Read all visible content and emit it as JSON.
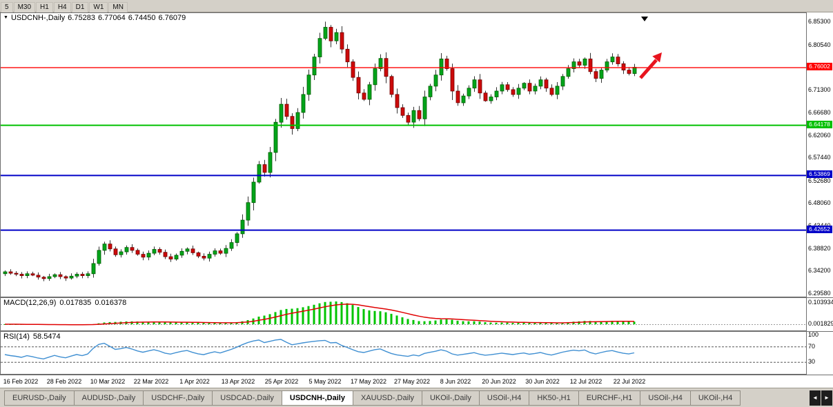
{
  "window": {
    "timeframes": [
      "5",
      "M30",
      "H1",
      "H4",
      "D1",
      "W1",
      "MN"
    ]
  },
  "chart": {
    "symbol_period": "USDCNH-,Daily",
    "open": "6.75283",
    "high": "6.77064",
    "low": "6.74450",
    "close": "6.76079",
    "y_axis": {
      "top": 6.872,
      "bottom": 6.29,
      "labels": [
        {
          "text": "6.85300",
          "price": 6.853
        },
        {
          "text": "6.80540",
          "price": 6.8054
        },
        {
          "text": "6.71300",
          "price": 6.713
        },
        {
          "text": "6.66680",
          "price": 6.6668
        },
        {
          "text": "6.62060",
          "price": 6.6206
        },
        {
          "text": "6.57440",
          "price": 6.5744
        },
        {
          "text": "6.52680",
          "price": 6.5268
        },
        {
          "text": "6.48060",
          "price": 6.4806
        },
        {
          "text": "6.43440",
          "price": 6.4344
        },
        {
          "text": "6.38820",
          "price": 6.3882
        },
        {
          "text": "6.34200",
          "price": 6.342
        },
        {
          "text": "6.29580",
          "price": 6.2958
        }
      ]
    },
    "hlines": [
      {
        "price": 6.76002,
        "label": "6.76002",
        "color": "#ff0000",
        "width": 1.4
      },
      {
        "price": 6.64178,
        "label": "6.64178",
        "color": "#00c000",
        "width": 2
      },
      {
        "price": 6.53869,
        "label": "6.53869",
        "color": "#0000c8",
        "width": 2
      },
      {
        "price": 6.42652,
        "label": "6.42652",
        "color": "#0000c8",
        "width": 2
      }
    ]
  },
  "chart_data": {
    "type": "candlestick",
    "symbol": "USDCNH-",
    "timeframe": "Daily",
    "closes": [
      6.341,
      6.338,
      6.336,
      6.333,
      6.337,
      6.334,
      6.33,
      6.327,
      6.331,
      6.335,
      6.331,
      6.328,
      6.332,
      6.336,
      6.333,
      6.337,
      6.358,
      6.385,
      6.398,
      6.388,
      6.376,
      6.382,
      6.391,
      6.385,
      6.377,
      6.371,
      6.379,
      6.387,
      6.381,
      6.372,
      6.367,
      6.375,
      6.383,
      6.388,
      6.38,
      6.373,
      6.369,
      6.377,
      6.384,
      6.379,
      6.389,
      6.401,
      6.419,
      6.447,
      6.483,
      6.525,
      6.561,
      6.545,
      6.586,
      6.648,
      6.685,
      6.66,
      6.635,
      6.668,
      6.705,
      6.745,
      6.782,
      6.82,
      6.843,
      6.815,
      6.832,
      6.798,
      6.772,
      6.74,
      6.708,
      6.695,
      6.725,
      6.758,
      6.779,
      6.742,
      6.705,
      6.678,
      6.662,
      6.648,
      6.672,
      6.655,
      6.7,
      6.722,
      6.745,
      6.778,
      6.758,
      6.712,
      6.688,
      6.702,
      6.718,
      6.735,
      6.708,
      6.692,
      6.7,
      6.712,
      6.725,
      6.715,
      6.705,
      6.718,
      6.728,
      6.712,
      6.722,
      6.735,
      6.718,
      6.705,
      6.722,
      6.742,
      6.758,
      6.772,
      6.765,
      6.778,
      6.752,
      6.738,
      6.755,
      6.772,
      6.782,
      6.768,
      6.755,
      6.748,
      6.761
    ]
  },
  "macd": {
    "name": "MACD(12,26,9)",
    "value_main": "0.017835",
    "value_signal": "0.016378",
    "axis_labels": [
      "0.103934",
      "0.001829"
    ],
    "histogram_color": "#00c400",
    "signal_color": "#e00000"
  },
  "rsi": {
    "name": "RSI(14)",
    "value": "58.5474",
    "line_color": "#3f8fd2",
    "levels": [
      {
        "label": "100",
        "value": 100
      },
      {
        "label": "70",
        "value": 70
      },
      {
        "label": "30",
        "value": 30
      }
    ]
  },
  "time_axis": [
    "16 Feb 2022",
    "28 Feb 2022",
    "10 Mar 2022",
    "22 Mar 2022",
    "1 Apr 2022",
    "13 Apr 2022",
    "25 Apr 2022",
    "5 May 2022",
    "17 May 2022",
    "27 May 2022",
    "8 Jun 2022",
    "20 Jun 2022",
    "30 Jun 2022",
    "12 Jul 2022",
    "22 Jul 2022"
  ],
  "tabs": {
    "items": [
      {
        "label": "EURUSD-,Daily",
        "active": false
      },
      {
        "label": "AUDUSD-,Daily",
        "active": false
      },
      {
        "label": "USDCHF-,Daily",
        "active": false
      },
      {
        "label": "USDCAD-,Daily",
        "active": false
      },
      {
        "label": "USDCNH-,Daily",
        "active": true
      },
      {
        "label": "XAUUSD-,Daily",
        "active": false
      },
      {
        "label": "UKOil-,Daily",
        "active": false
      },
      {
        "label": "USOil-,H4",
        "active": false
      },
      {
        "label": "HK50-,H1",
        "active": false
      },
      {
        "label": "EURCHF-,H1",
        "active": false
      },
      {
        "label": "USOil-,H4",
        "active": false
      },
      {
        "label": "UKOil-,H4",
        "active": false
      }
    ],
    "scroll_left": "◄",
    "scroll_right": "►"
  },
  "colors": {
    "up": "#00a41a",
    "down": "#cc0a0a",
    "wick": "#333333",
    "arrow": "#e8141e",
    "down_marker": "#000000"
  }
}
